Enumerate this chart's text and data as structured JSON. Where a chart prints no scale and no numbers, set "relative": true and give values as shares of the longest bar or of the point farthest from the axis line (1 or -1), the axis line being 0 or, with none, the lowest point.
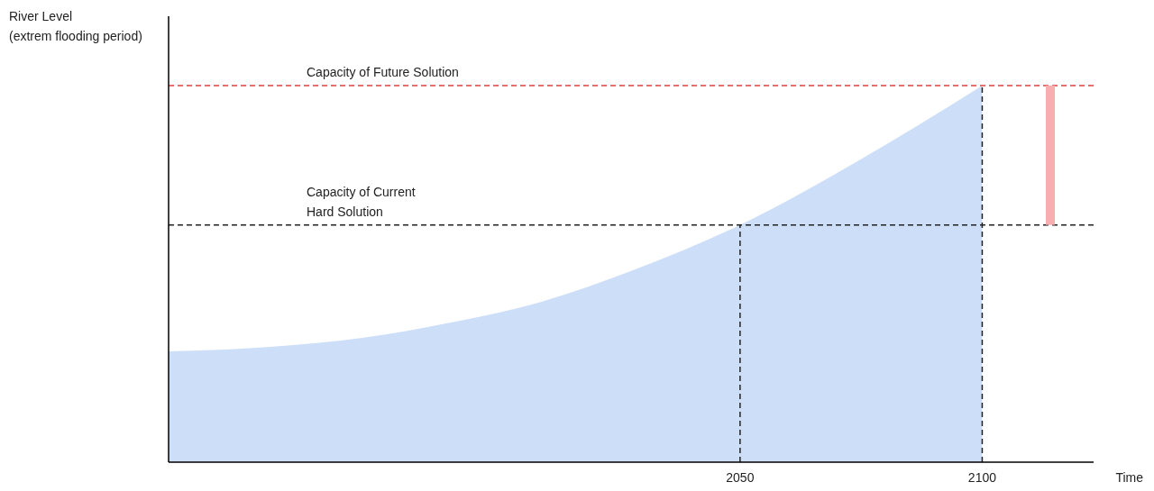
{
  "chart_data": {
    "type": "area",
    "relative": true,
    "ylabel": "River Level\n(extrem flooding period)",
    "xlabel": "Time",
    "x": [
      1932,
      1953,
      1972,
      1990,
      2009,
      2028,
      2050,
      2074,
      2100
    ],
    "series": [
      {
        "color": "#cddff8",
        "values": [
          0.294,
          0.306,
          0.33,
          0.37,
          0.426,
          0.51,
          0.63,
          0.797,
          1
        ]
      }
    ],
    "xlim": [
      1932,
      2123
    ],
    "xticks": [
      2050,
      2100
    ],
    "grid": false,
    "ref_lines": [
      {
        "axis": "y",
        "value": 1,
        "label": "Capacity of Future Solution",
        "color": "#e0403f",
        "line_style": "dashed"
      },
      {
        "axis": "y",
        "value": 0.63,
        "label": "Capacity of Current\nHard Solution",
        "color": "#222222",
        "line_style": "dashed"
      },
      {
        "axis": "x",
        "value": 2050,
        "color": "#222222",
        "line_style": "dashed"
      },
      {
        "axis": "x",
        "value": 2100,
        "color": "#222222",
        "line_style": "dashed"
      }
    ]
  }
}
